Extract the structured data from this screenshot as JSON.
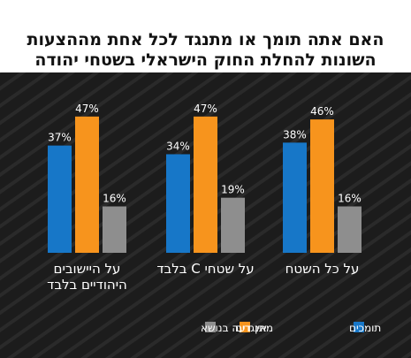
{
  "chart_data": {
    "type": "bar",
    "title": "האם אתה תומך או מתנגד לכל אחת מההצעות השונות להחלת החוק הישראלי בשטחי יהודה ושומרון?",
    "categories": [
      "על היישובים היהודיים בלבד",
      "על שטחי C בלבד",
      "על כל השטח"
    ],
    "category_lines": [
      [
        "על היישובים",
        "היהודיים בלבד"
      ],
      [
        "על שטחי C בלבד"
      ],
      [
        "על כל השטח"
      ]
    ],
    "series": [
      {
        "name": "תומכים",
        "values": [
          37,
          34,
          38
        ],
        "color": "#1777c8"
      },
      {
        "name": "מתנגדים",
        "values": [
          47,
          47,
          46
        ],
        "color": "#f7941d"
      },
      {
        "name": "אין דעה בנושא",
        "values": [
          16,
          19,
          16
        ],
        "color": "#8e8e8e"
      }
    ],
    "value_suffix": "%",
    "ylim": [
      0,
      60
    ],
    "grid": false,
    "legend_position": "bottom",
    "background": "#1c1c1c",
    "text_color": "#ffffff"
  }
}
